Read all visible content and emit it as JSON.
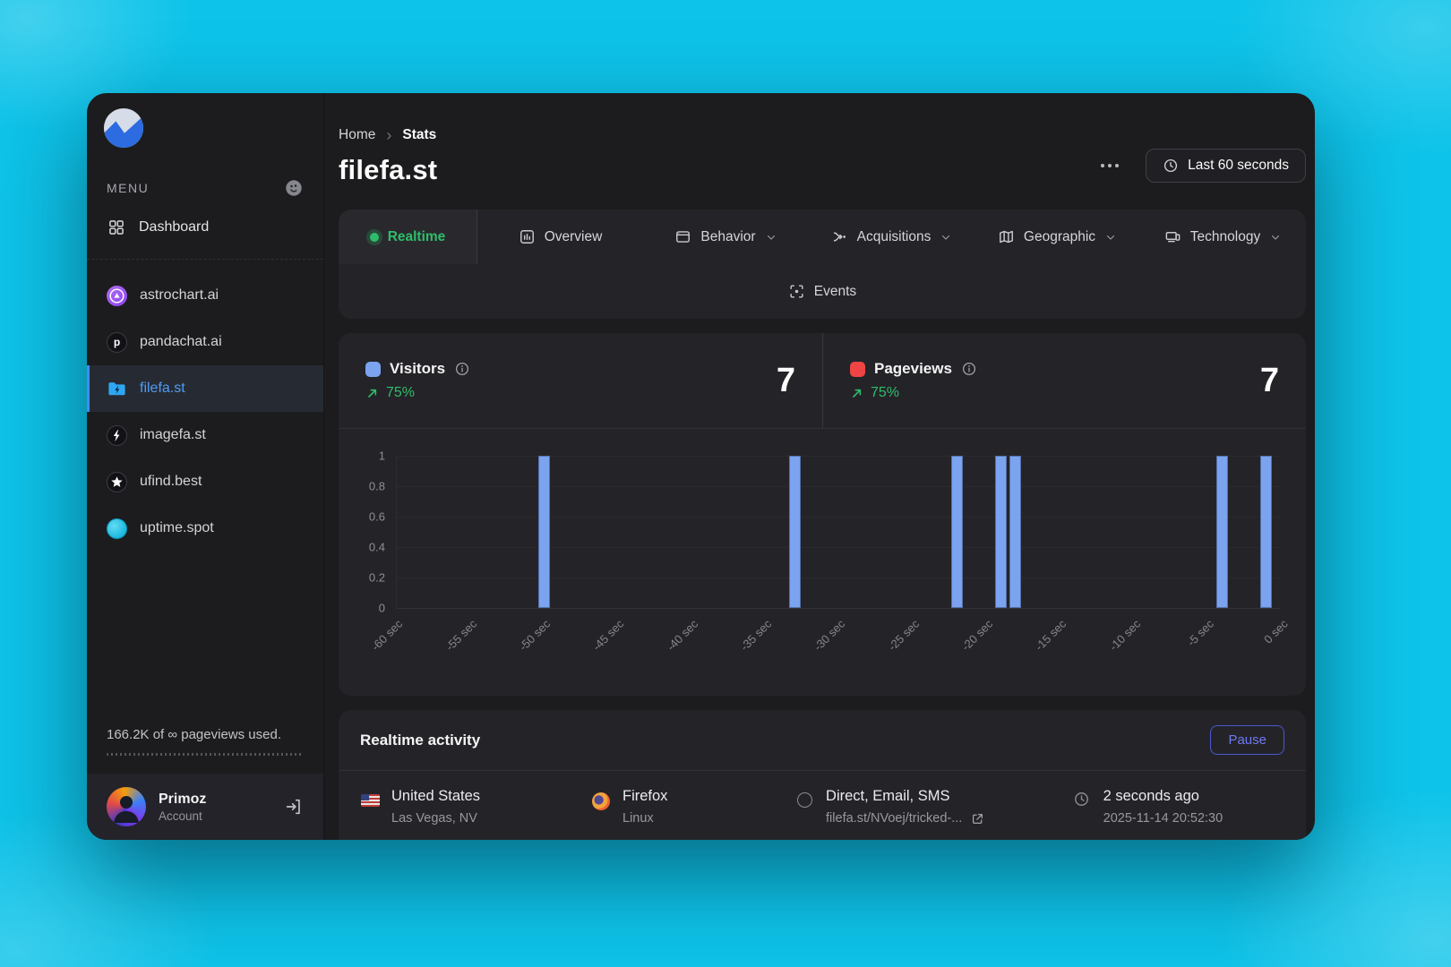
{
  "header": {
    "breadcrumb": {
      "home": "Home",
      "separator": "›",
      "current": "Stats"
    },
    "title": "filefa.st",
    "more_icon": "ellipsis-icon",
    "range_button": {
      "icon": "clock-icon",
      "label": "Last 60 seconds"
    }
  },
  "sidebar": {
    "menu_label": "MENU",
    "menu_icon": "face-icon",
    "dashboard": {
      "icon": "grid-icon",
      "label": "Dashboard"
    },
    "sites": [
      {
        "icon": "astrochart",
        "label": "astrochart.ai",
        "active": false
      },
      {
        "icon": "pandachat",
        "label": "pandachat.ai",
        "active": false
      },
      {
        "icon": "filefa",
        "label": "filefa.st",
        "active": true
      },
      {
        "icon": "imagefa",
        "label": "imagefa.st",
        "active": false
      },
      {
        "icon": "ufind",
        "label": "ufind.best",
        "active": false
      },
      {
        "icon": "uptime",
        "label": "uptime.spot",
        "active": false
      }
    ],
    "usage_text": "166.2K of ∞ pageviews used.",
    "user": {
      "name": "Primoz",
      "role": "Account",
      "logout_icon": "logout-icon"
    }
  },
  "tabs": {
    "active_color": "#2ebd6b",
    "rows": [
      [
        {
          "icon": "live-dot",
          "label": "Realtime",
          "active": true
        },
        {
          "icon": "overview",
          "label": "Overview"
        },
        {
          "icon": "behavior",
          "label": "Behavior",
          "chevron": true
        },
        {
          "icon": "acquisitions",
          "label": "Acquisitions",
          "chevron": true
        },
        {
          "icon": "geographic",
          "label": "Geographic",
          "chevron": true
        },
        {
          "icon": "technology",
          "label": "Technology",
          "chevron": true
        }
      ],
      [
        {
          "icon": "events",
          "label": "Events"
        }
      ]
    ]
  },
  "stats": {
    "visitors": {
      "label": "Visitors",
      "value": "7",
      "trend": "75%",
      "color": "#7ba3f0",
      "trend_color": "#2ebd6b",
      "info_icon": "info-icon"
    },
    "pageviews": {
      "label": "Pageviews",
      "value": "7",
      "trend": "75%",
      "color": "#ee4444",
      "trend_color": "#2ebd6b",
      "info_icon": "info-icon"
    }
  },
  "chart_data": {
    "type": "bar",
    "x_unit": "seconds ago",
    "x_range": [
      -60,
      0
    ],
    "xticks": [
      "-60 sec",
      "-55 sec",
      "-50 sec",
      "-45 sec",
      "-40 sec",
      "-35 sec",
      "-30 sec",
      "-25 sec",
      "-20 sec",
      "-15 sec",
      "-10 sec",
      "-5 sec",
      "0 sec"
    ],
    "yticks": [
      1,
      0.8,
      0.6,
      0.4,
      0.2,
      0
    ],
    "ylim": [
      0,
      1
    ],
    "grid": true,
    "legend": [
      {
        "label": "Visitors",
        "color": "#7ba3f0"
      },
      {
        "label": "Pageviews",
        "color": "#ee4444"
      }
    ],
    "series": [
      {
        "name": "Visitors",
        "color": "#7ba3f0",
        "points": [
          {
            "seconds_ago": -50,
            "value": 1
          },
          {
            "seconds_ago": -33,
            "value": 1
          },
          {
            "seconds_ago": -22,
            "value": 1
          },
          {
            "seconds_ago": -19,
            "value": 1
          },
          {
            "seconds_ago": -18,
            "value": 1
          },
          {
            "seconds_ago": -4,
            "value": 1
          },
          {
            "seconds_ago": -1,
            "value": 1
          }
        ]
      }
    ]
  },
  "activity": {
    "title": "Realtime activity",
    "pause_label": "Pause",
    "rows": [
      {
        "cells": [
          {
            "icon": "flag-us-icon",
            "title": "United States",
            "sub": "Las Vegas, NV"
          },
          {
            "icon": "firefox-icon",
            "title": "Firefox",
            "sub": "Linux"
          },
          {
            "icon": "circle-icon",
            "title": "Direct, Email, SMS",
            "sub": "filefa.st/NVoej/tricked-...",
            "sub_icon": "external-link-icon",
            "sub_link": true
          },
          {
            "icon": "clock-icon",
            "title": "2 seconds ago",
            "sub": "2025-11-14 20:52:30"
          }
        ]
      }
    ]
  }
}
